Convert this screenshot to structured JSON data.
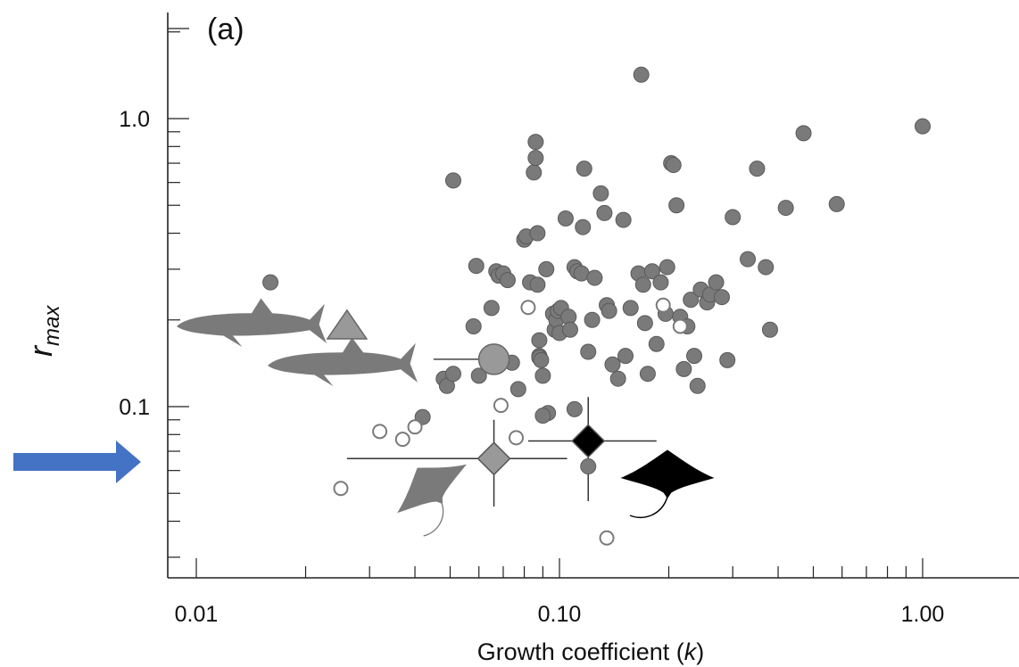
{
  "chart_data": {
    "type": "scatter",
    "panel_label": "(a)",
    "xlabel": "Growth coefficient (k)",
    "ylabel": "r_max",
    "ylabel_main": "r",
    "ylabel_sub": "max",
    "xlabel_prefix": "Growth coefficient (",
    "xlabel_var": "k",
    "xlabel_suffix": ")",
    "x_scale": "log",
    "y_scale": "log",
    "xlim": [
      0.008,
      2.0
    ],
    "ylim": [
      0.036,
      2.0
    ],
    "x_ticks": [
      {
        "value": 0.01,
        "label": "0.01"
      },
      {
        "value": 0.1,
        "label": "0.10"
      },
      {
        "value": 1.0,
        "label": "1.00"
      }
    ],
    "y_ticks": [
      {
        "value": 0.1,
        "label": "0.1"
      },
      {
        "value": 1.0,
        "label": "1.0"
      }
    ],
    "grid": false,
    "series": [
      {
        "marker": "filled-circle",
        "color": "#7a7a7a",
        "x": [
          0.016,
          0.051,
          0.042,
          0.048,
          0.049,
          0.051,
          0.059,
          0.058,
          0.06,
          0.065,
          0.067,
          0.068,
          0.07,
          0.072,
          0.074,
          0.077,
          0.08,
          0.081,
          0.083,
          0.085,
          0.086,
          0.086,
          0.087,
          0.088,
          0.088,
          0.088,
          0.089,
          0.09,
          0.092,
          0.093,
          0.096,
          0.097,
          0.098,
          0.099,
          0.1,
          0.101,
          0.104,
          0.106,
          0.107,
          0.11,
          0.112,
          0.115,
          0.116,
          0.117,
          0.12,
          0.123,
          0.125,
          0.13,
          0.133,
          0.135,
          0.137,
          0.14,
          0.145,
          0.15,
          0.152,
          0.157,
          0.165,
          0.17,
          0.172,
          0.175,
          0.18,
          0.185,
          0.19,
          0.196,
          0.198,
          0.203,
          0.206,
          0.21,
          0.215,
          0.22,
          0.225,
          0.23,
          0.235,
          0.24,
          0.245,
          0.255,
          0.26,
          0.27,
          0.28,
          0.29,
          0.3,
          0.33,
          0.35,
          0.37,
          0.38,
          0.42,
          0.47,
          0.58,
          1.0,
          0.12,
          0.11,
          0.09,
          0.087,
          0.168
        ],
        "y": [
          0.27,
          0.61,
          0.092,
          0.125,
          0.118,
          0.13,
          0.308,
          0.19,
          0.128,
          0.22,
          0.295,
          0.285,
          0.29,
          0.275,
          0.142,
          0.115,
          0.38,
          0.39,
          0.27,
          0.65,
          0.83,
          0.73,
          0.4,
          0.17,
          0.15,
          0.148,
          0.145,
          0.128,
          0.3,
          0.095,
          0.21,
          0.185,
          0.2,
          0.215,
          0.18,
          0.22,
          0.45,
          0.205,
          0.185,
          0.305,
          0.295,
          0.29,
          0.42,
          0.67,
          0.155,
          0.2,
          0.28,
          0.55,
          0.47,
          0.225,
          0.215,
          0.14,
          0.125,
          0.445,
          0.15,
          0.22,
          0.29,
          0.265,
          0.195,
          0.13,
          0.295,
          0.165,
          0.27,
          0.21,
          0.305,
          0.7,
          0.69,
          0.5,
          0.205,
          0.135,
          0.19,
          0.235,
          0.15,
          0.118,
          0.255,
          0.23,
          0.245,
          0.27,
          0.24,
          0.145,
          0.455,
          0.325,
          0.67,
          0.305,
          0.185,
          0.49,
          0.89,
          0.505,
          0.94,
          0.062,
          0.098,
          0.093,
          0.265,
          1.42
        ]
      },
      {
        "marker": "open-circle",
        "color": "#7a7a7a",
        "x": [
          0.025,
          0.032,
          0.037,
          0.04,
          0.069,
          0.076,
          0.082,
          0.193,
          0.215,
          0.135
        ],
        "y": [
          0.052,
          0.082,
          0.077,
          0.085,
          0.101,
          0.078,
          0.221,
          0.225,
          0.19,
          0.035
        ]
      },
      {
        "marker": "triangle",
        "color": "#999999",
        "x": [
          0.026
        ],
        "y": [
          0.19
        ]
      },
      {
        "marker": "large-circle",
        "color": "#999999",
        "x": [
          0.066
        ],
        "y": [
          0.146
        ],
        "x_err": [
          0.045,
          0.066
        ]
      },
      {
        "marker": "diamond",
        "color": "#999999",
        "x": [
          0.066
        ],
        "y": [
          0.066
        ],
        "x_err": [
          0.026,
          0.105
        ],
        "y_err": [
          0.045,
          0.09
        ]
      },
      {
        "marker": "diamond",
        "color": "#000000",
        "x": [
          0.12
        ],
        "y": [
          0.076
        ],
        "x_err": [
          0.082,
          0.185
        ],
        "y_err": [
          0.047,
          0.108
        ]
      }
    ],
    "icons": [
      "whale-shark-silhouette",
      "shark-silhouette",
      "grey-manta-silhouette",
      "black-manta-silhouette"
    ],
    "annotation_arrow_color": "#4472c4"
  }
}
